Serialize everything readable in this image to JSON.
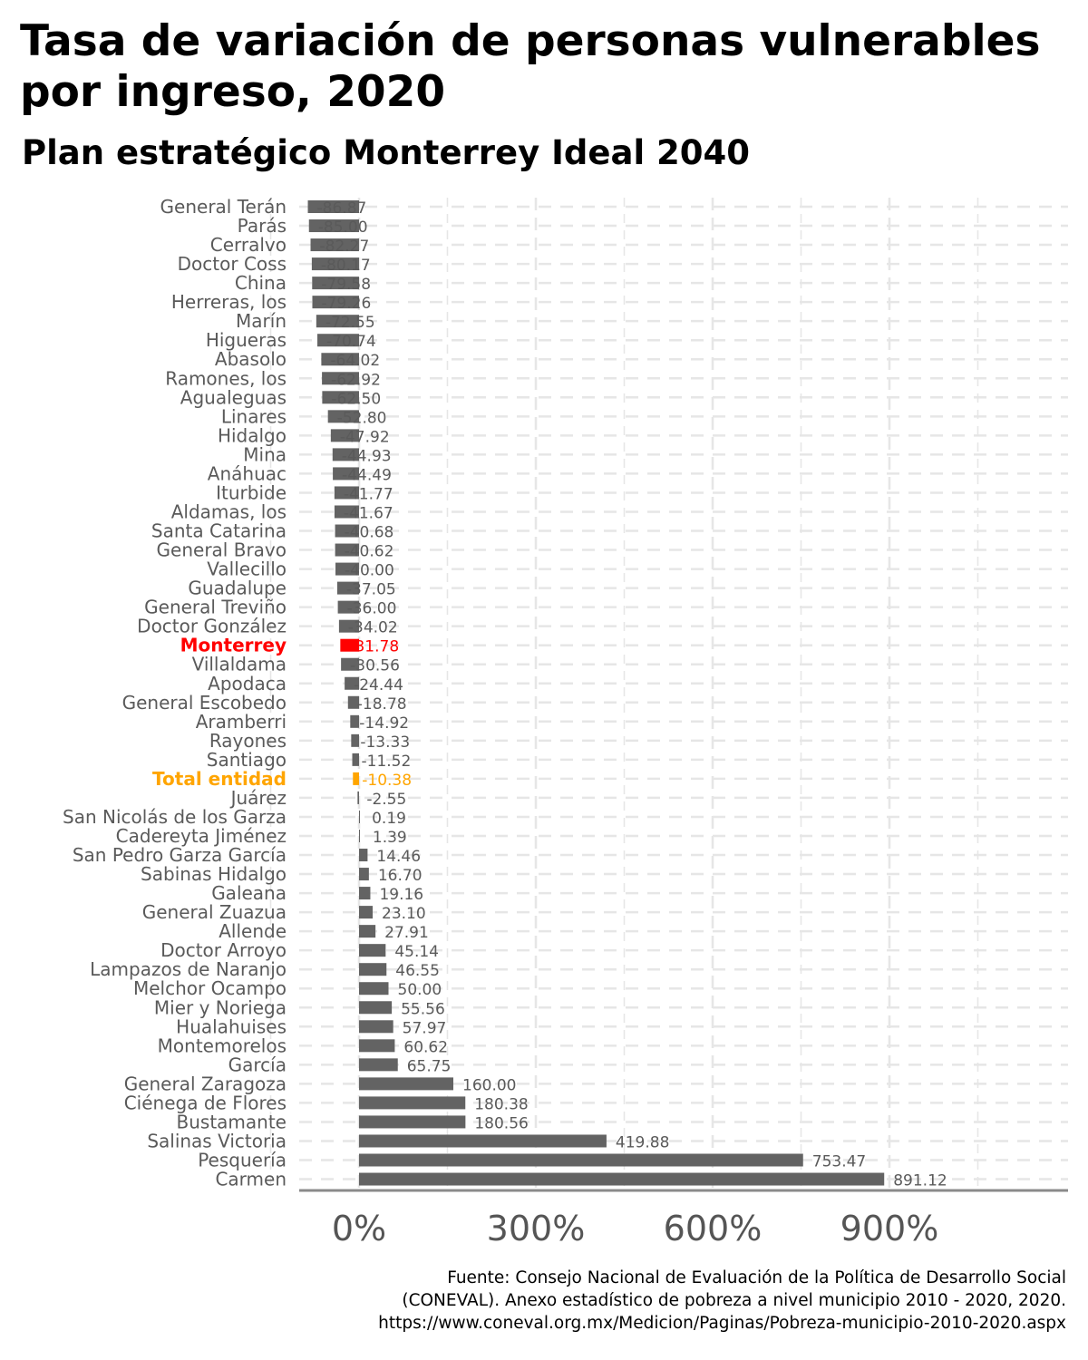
{
  "title": "Tasa de variación de personas vulnerables por ingreso, 2020",
  "subtitle": "Plan estratégico Monterrey Ideal 2040",
  "caption": {
    "line1": "Fuente: Consejo Nacional de Evaluación de la Política de Desarrollo Social",
    "line2": "(CONEVAL). Anexo estadístico de pobreza a nivel municipio 2010 - 2020, 2020.",
    "line3": "https://www.coneval.org.mx/Medicion/Paginas/Pobreza-municipio-2010-2020.aspx"
  },
  "colors": {
    "bar": "#636363",
    "highlight_monterrey": "#ff0000",
    "highlight_total": "#ffa500",
    "grid": "#e6e6e6",
    "axis": "#8a8a8a"
  },
  "chart_data": {
    "type": "bar",
    "orientation": "horizontal",
    "xlim": [
      -90,
      1180
    ],
    "x_ticks": [
      0,
      300,
      600,
      900
    ],
    "x_tick_labels": [
      "0%",
      "300%",
      "600%",
      "900%"
    ],
    "grid": true,
    "categories": [
      "General Terán",
      "Parás",
      "Cerralvo",
      "Doctor Coss",
      "China",
      "Herreras, los",
      "Marín",
      "Higueras",
      "Abasolo",
      "Ramones, los",
      "Agualeguas",
      "Linares",
      "Hidalgo",
      "Mina",
      "Anáhuac",
      "Iturbide",
      "Aldamas, los",
      "Santa Catarina",
      "General Bravo",
      "Vallecillo",
      "Guadalupe",
      "General Treviño",
      "Doctor González",
      "Monterrey",
      "Villaldama",
      "Apodaca",
      "General Escobedo",
      "Aramberri",
      "Rayones",
      "Santiago",
      "Total entidad",
      "Juárez",
      "San Nicolás de los Garza",
      "Cadereyta Jiménez",
      "San Pedro Garza García",
      "Sabinas Hidalgo",
      "Galeana",
      "General Zuazua",
      "Allende",
      "Doctor Arroyo",
      "Lampazos de Naranjo",
      "Melchor Ocampo",
      "Mier y Noriega",
      "Hualahuises",
      "Montemorelos",
      "García",
      "General Zaragoza",
      "Ciénega de Flores",
      "Bustamante",
      "Salinas Victoria",
      "Pesquería",
      "Carmen"
    ],
    "values": [
      -86.87,
      -85.0,
      -82.27,
      -80.17,
      -79.58,
      -79.26,
      -72.55,
      -70.74,
      -64.02,
      -62.92,
      -62.5,
      -52.8,
      -47.92,
      -44.93,
      -44.49,
      -41.77,
      -41.67,
      -40.68,
      -40.62,
      -40.0,
      -37.05,
      -36.0,
      -34.02,
      -31.78,
      -30.56,
      -24.44,
      -18.78,
      -14.92,
      -13.33,
      -11.52,
      -10.38,
      -2.55,
      0.19,
      1.39,
      14.46,
      16.7,
      19.16,
      23.1,
      27.91,
      45.14,
      46.55,
      50.0,
      55.56,
      57.97,
      60.62,
      65.75,
      160.0,
      180.38,
      180.56,
      419.88,
      753.47,
      891.12
    ],
    "value_labels": [
      "-86.87",
      "-85.00",
      "-82.27",
      "-80.17",
      "-79.58",
      "-79.26",
      "-72.55",
      "-70.74",
      "-64.02",
      "-62.92",
      "-62.50",
      "-52.80",
      "-47.92",
      "-44.93",
      "-44.49",
      "-41.77",
      "-41.67",
      "-40.68",
      "-40.62",
      "-40.00",
      "-37.05",
      "-36.00",
      "-34.02",
      "-31.78",
      "-30.56",
      "-24.44",
      "-18.78",
      "-14.92",
      "-13.33",
      "-11.52",
      "-10.38",
      "-2.55",
      "0.19",
      "1.39",
      "14.46",
      "16.70",
      "19.16",
      "23.10",
      "27.91",
      "45.14",
      "46.55",
      "50.00",
      "55.56",
      "57.97",
      "60.62",
      "65.75",
      "160.00",
      "180.38",
      "180.56",
      "419.88",
      "753.47",
      "891.12"
    ],
    "highlights": {
      "Monterrey": "red",
      "Total entidad": "orange"
    }
  }
}
